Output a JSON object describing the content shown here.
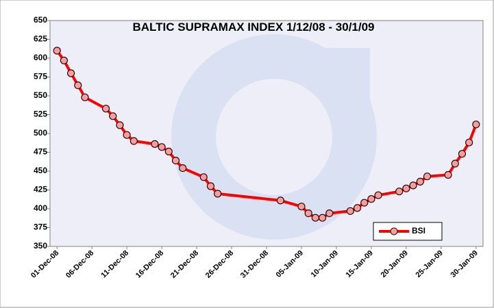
{
  "chart_data": {
    "type": "line",
    "title": "BALTIC SUPRAMAX INDEX 1/12/08 - 30/1/09",
    "x": [
      "2008-12-01",
      "2008-12-02",
      "2008-12-03",
      "2008-12-04",
      "2008-12-05",
      "2008-12-08",
      "2008-12-09",
      "2008-12-10",
      "2008-12-11",
      "2008-12-12",
      "2008-12-15",
      "2008-12-16",
      "2008-12-17",
      "2008-12-18",
      "2008-12-19",
      "2008-12-22",
      "2008-12-23",
      "2008-12-24",
      "2009-01-02",
      "2009-01-05",
      "2009-01-06",
      "2009-01-07",
      "2009-01-08",
      "2009-01-09",
      "2009-01-12",
      "2009-01-13",
      "2009-01-14",
      "2009-01-15",
      "2009-01-16",
      "2009-01-19",
      "2009-01-20",
      "2009-01-21",
      "2009-01-22",
      "2009-01-23",
      "2009-01-26",
      "2009-01-27",
      "2009-01-28",
      "2009-01-29",
      "2009-01-30"
    ],
    "series": [
      {
        "name": "BSI",
        "color": "#ff0000",
        "marker_color": "#f0a0a0",
        "values": [
          610,
          597,
          580,
          564,
          548,
          533,
          523,
          511,
          498,
          490,
          486,
          482,
          476,
          464,
          454,
          442,
          430,
          420,
          411,
          403,
          394,
          388,
          388,
          394,
          397,
          401,
          408,
          413,
          418,
          423,
          427,
          431,
          436,
          443,
          445,
          460,
          473,
          488,
          512
        ]
      }
    ],
    "xlim": [
      "2008-11-30",
      "2009-01-31"
    ],
    "xticks": [
      {
        "value": "2008-12-01",
        "label": "01-Dec-08"
      },
      {
        "value": "2008-12-06",
        "label": "06-Dec-08"
      },
      {
        "value": "2008-12-11",
        "label": "11-Dec-08"
      },
      {
        "value": "2008-12-16",
        "label": "16-Dec-08"
      },
      {
        "value": "2008-12-21",
        "label": "21-Dec-08"
      },
      {
        "value": "2008-12-26",
        "label": "26-Dec-08"
      },
      {
        "value": "2008-12-31",
        "label": "31-Dec-08"
      },
      {
        "value": "2009-01-05",
        "label": "05-Jan-09"
      },
      {
        "value": "2009-01-10",
        "label": "10-Jan-09"
      },
      {
        "value": "2009-01-15",
        "label": "15-Jan-09"
      },
      {
        "value": "2009-01-20",
        "label": "20-Jan-09"
      },
      {
        "value": "2009-01-25",
        "label": "25-Jan-09"
      },
      {
        "value": "2009-01-30",
        "label": "30-Jan-09"
      }
    ],
    "ylim": [
      350,
      650
    ],
    "yticks": [
      350,
      375,
      400,
      425,
      450,
      475,
      500,
      525,
      550,
      575,
      600,
      625,
      650
    ],
    "legend": "bottom-right"
  }
}
